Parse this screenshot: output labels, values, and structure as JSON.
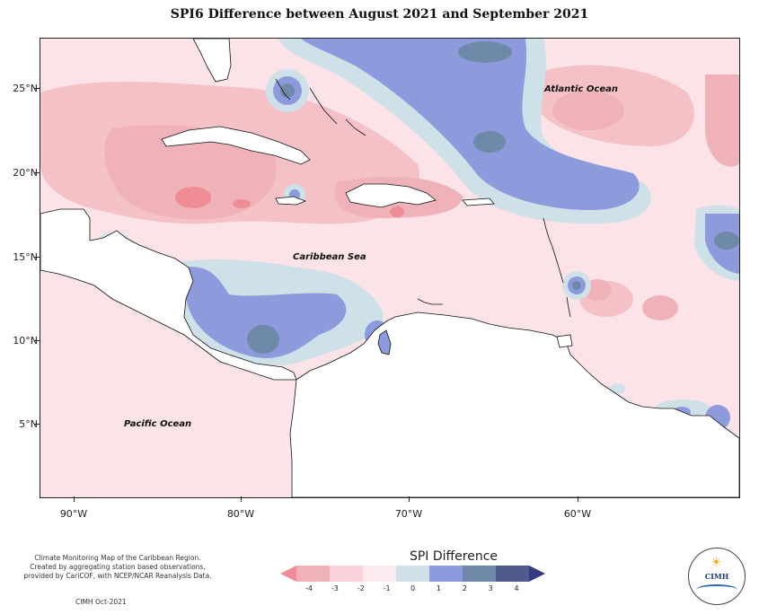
{
  "title": "SPI6 Difference between August 2021 and September 2021",
  "axes": {
    "lat_labels": [
      "25°N",
      "20°N",
      "15°N",
      "10°N",
      "5°N"
    ],
    "lon_labels": [
      "90°W",
      "80°W",
      "70°W",
      "60°W"
    ]
  },
  "map_labels": {
    "atlantic": "Atlantic Ocean",
    "caribbean": "Caribbean Sea",
    "pacific": "Pacific Ocean"
  },
  "legend": {
    "title": "SPI Difference",
    "ticks": [
      "-4",
      "-3",
      "-2",
      "-1",
      "0",
      "1",
      "2",
      "3",
      "4"
    ],
    "colors": [
      "#f08c96",
      "#efb2b8",
      "#f9d3d9",
      "#fcebee",
      "#cfe1e8",
      "#8d9bdc",
      "#6f89a8",
      "#4e5b8c",
      "#323a80"
    ]
  },
  "credit": {
    "lines": [
      "Climate Monitoring Map of the Caribbean Region.",
      "Created by aggregating station based observations,",
      "provided by CariCOF, with NCEP/NCAR Reanalysis Data."
    ],
    "date": "CIMH Oct-2021"
  },
  "logo": {
    "text": "CIMH"
  }
}
